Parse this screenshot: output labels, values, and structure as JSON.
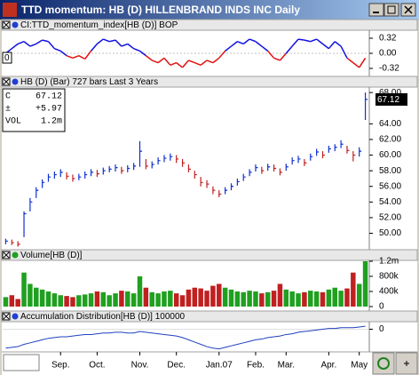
{
  "window_title": "TTD momentum: HB (D) HILLENBRAND INDS INC Daily",
  "x_axis": {
    "categories": [
      null,
      null,
      null,
      null,
      null,
      null,
      null,
      null,
      null,
      "Sep.",
      null,
      null,
      null,
      null,
      null,
      "Oct.",
      null,
      null,
      null,
      null,
      null,
      null,
      "Nov.",
      null,
      null,
      null,
      null,
      null,
      "Dec.",
      null,
      null,
      null,
      null,
      null,
      null,
      "Jan.07",
      null,
      null,
      null,
      null,
      null,
      "Feb.",
      null,
      null,
      null,
      null,
      "Mar.",
      null,
      null,
      null,
      null,
      null,
      null,
      "Apr.",
      null,
      null,
      null,
      null,
      "May",
      null
    ]
  },
  "chart_data": [
    {
      "type": "momentum",
      "title": "CI:TTD_momentum_index[HB (D)] BOP",
      "left_label": "0",
      "color_up": "#1010e0",
      "color_down": "#e01010",
      "values": [
        0.0,
        0.1,
        0.2,
        0.25,
        0.15,
        0.2,
        0.28,
        0.25,
        0.1,
        0.05,
        -0.05,
        -0.1,
        -0.05,
        -0.12,
        0.05,
        0.2,
        0.3,
        0.25,
        0.28,
        0.15,
        0.2,
        0.1,
        0.05,
        -0.05,
        -0.15,
        -0.2,
        -0.1,
        -0.25,
        -0.2,
        -0.3,
        -0.15,
        -0.2,
        -0.25,
        -0.15,
        -0.2,
        -0.1,
        0.05,
        0.15,
        0.25,
        0.2,
        0.3,
        0.25,
        0.15,
        0.05,
        -0.1,
        -0.15,
        0.0,
        0.15,
        0.3,
        0.28,
        0.25,
        0.3,
        0.2,
        0.1,
        0.25,
        0.15,
        -0.1,
        -0.2,
        -0.3,
        -0.1
      ],
      "ylim": [
        -0.49,
        0.49
      ],
      "yticks": [
        {
          "value": 0.32,
          "label": "0.32"
        },
        {
          "value": 0,
          "label": "0.00"
        },
        {
          "value": -0.32,
          "label": "-0.32"
        }
      ]
    },
    {
      "type": "ohlc",
      "title": "HB (D) (Bar) 727 bars   Last 3 Years",
      "color_up": "#1030d0",
      "color_down": "#c02020",
      "info": [
        [
          "C",
          "67.12"
        ],
        [
          "±",
          "+5.97"
        ],
        [
          "VOL",
          "1.2m"
        ]
      ],
      "close": [
        49,
        48.8,
        48.6,
        52.5,
        54,
        55.5,
        56.5,
        57.2,
        57.5,
        57.8,
        57.3,
        57.0,
        57.2,
        57.5,
        57.8,
        57.6,
        58.0,
        58.2,
        58.4,
        58.0,
        58.3,
        58.6,
        60.5,
        58.6,
        58.8,
        59.3,
        59.6,
        59.8,
        59.5,
        59.0,
        58.2,
        57.5,
        56.5,
        56.3,
        55.5,
        55.0,
        55.5,
        56.0,
        56.6,
        57.2,
        57.8,
        58.4,
        58.0,
        58.5,
        58.3,
        57.8,
        58.5,
        59.3,
        59.5,
        59.0,
        59.8,
        60.4,
        60.0,
        60.8,
        61.0,
        61.4,
        60.6,
        60.0,
        60.5,
        67.12
      ],
      "high": [
        49.3,
        49.2,
        49.0,
        52.8,
        54.5,
        55.9,
        56.9,
        57.6,
        57.9,
        58.2,
        57.8,
        57.5,
        57.6,
        57.9,
        58.2,
        58.1,
        58.4,
        58.6,
        58.8,
        58.5,
        58.7,
        59.0,
        61.8,
        59.5,
        59.2,
        59.7,
        60.0,
        60.2,
        60.0,
        59.5,
        58.8,
        58.0,
        57.2,
        56.8,
        56.0,
        55.5,
        55.9,
        56.4,
        57.0,
        57.6,
        58.2,
        58.8,
        58.5,
        58.9,
        58.8,
        58.3,
        58.9,
        59.7,
        59.9,
        59.5,
        60.2,
        60.8,
        60.5,
        61.2,
        61.4,
        61.9,
        61.2,
        60.5,
        61.0,
        68.0
      ],
      "low": [
        48.6,
        48.5,
        48.3,
        49.5,
        52.8,
        54.5,
        55.8,
        56.6,
        57.0,
        57.2,
        56.9,
        56.6,
        56.8,
        57.0,
        57.3,
        57.2,
        57.5,
        57.8,
        57.9,
        57.6,
        57.8,
        58.1,
        58.5,
        58.2,
        58.3,
        58.8,
        59.1,
        59.3,
        59.0,
        58.5,
        57.8,
        57.0,
        56.0,
        55.8,
        55.0,
        54.6,
        55.0,
        55.5,
        56.1,
        56.7,
        57.3,
        57.9,
        57.6,
        58.0,
        57.9,
        57.4,
        58.0,
        58.8,
        59.0,
        58.6,
        59.3,
        59.9,
        59.6,
        60.3,
        60.5,
        60.9,
        60.2,
        59.2,
        59.8,
        64.5
      ],
      "ylim": [
        47.9,
        68.7
      ],
      "yticks": [
        {
          "value": 68,
          "label": "68.00"
        },
        {
          "value": 64,
          "label": "64.00"
        },
        {
          "value": 62,
          "label": "62.00"
        },
        {
          "value": 60,
          "label": "60.00"
        },
        {
          "value": 58,
          "label": "58.00"
        },
        {
          "value": 56,
          "label": "56.00"
        },
        {
          "value": 54,
          "label": "54.00"
        },
        {
          "value": 52,
          "label": "52.00"
        },
        {
          "value": 50,
          "label": "50.00"
        }
      ]
    },
    {
      "type": "volume",
      "title": "Volume[HB (D)]",
      "color_up": "#20a020",
      "color_down": "#c02020",
      "values": [
        250000,
        300000,
        200000,
        900000,
        600000,
        500000,
        450000,
        400000,
        350000,
        300000,
        280000,
        250000,
        300000,
        320000,
        350000,
        400000,
        380000,
        300000,
        350000,
        420000,
        400000,
        350000,
        800000,
        500000,
        380000,
        350000,
        400000,
        420000,
        350000,
        300000,
        450000,
        500000,
        480000,
        420000,
        550000,
        600000,
        500000,
        450000,
        400000,
        380000,
        420000,
        400000,
        350000,
        380000,
        420000,
        600000,
        450000,
        400000,
        350000,
        380000,
        420000,
        400000,
        380000,
        450000,
        500000,
        420000,
        480000,
        900000,
        600000,
        1200000
      ],
      "ylim": [
        -118000,
        1223000
      ],
      "yticks": [
        {
          "value": 1200000,
          "label": "1.2m"
        },
        {
          "value": 800000,
          "label": "800k"
        },
        {
          "value": 400000,
          "label": "400k"
        },
        0
      ]
    },
    {
      "type": "line",
      "title": "Accumulation Distribution[HB (D)] 100000",
      "color": "#2040c0",
      "values": [
        -2.5,
        -2.4,
        -2.3,
        -2.0,
        -1.8,
        -1.6,
        -1.4,
        -1.2,
        -1.1,
        -1.0,
        -1.0,
        -0.9,
        -0.8,
        -0.7,
        -0.7,
        -0.6,
        -0.5,
        -0.5,
        -0.4,
        -0.4,
        -0.5,
        -0.5,
        -0.3,
        -0.4,
        -0.5,
        -0.6,
        -0.7,
        -0.8,
        -0.9,
        -1.1,
        -1.4,
        -1.7,
        -2.0,
        -2.3,
        -2.5,
        -2.6,
        -2.4,
        -2.2,
        -2.0,
        -1.8,
        -1.6,
        -1.4,
        -1.3,
        -1.1,
        -1.0,
        -0.9,
        -0.7,
        -0.6,
        -0.4,
        -0.3,
        -0.2,
        -0.1,
        0.0,
        0.1,
        0.1,
        0.2,
        0.2,
        0.2,
        0.3,
        0.4
      ],
      "ylim": [
        -3,
        1
      ],
      "yticks": [
        0
      ]
    }
  ]
}
